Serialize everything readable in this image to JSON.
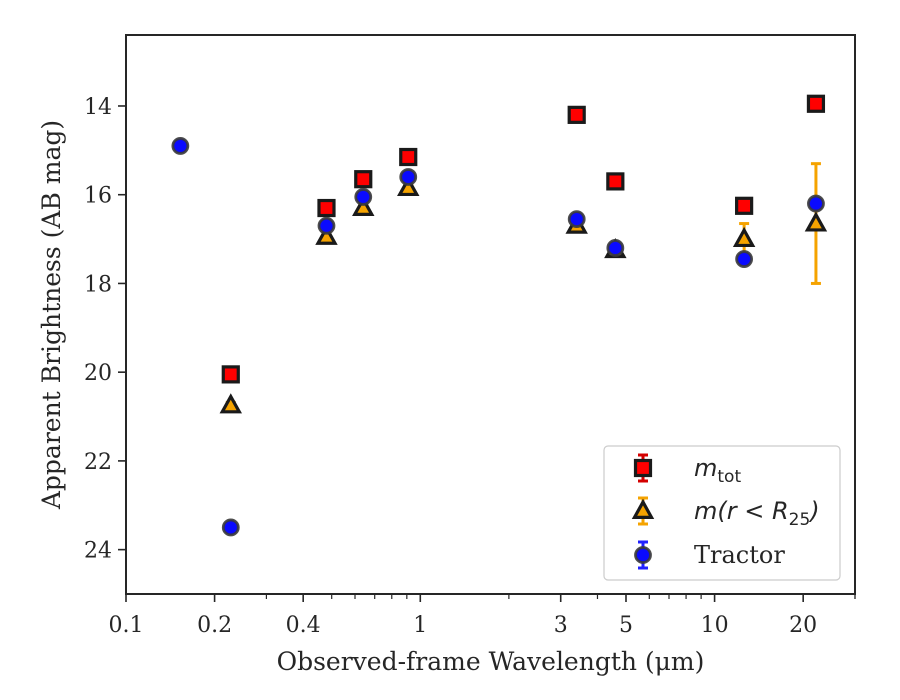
{
  "chart_data": {
    "type": "scatter",
    "xlabel": "Observed-frame Wavelength (μm)",
    "ylabel": "Apparent Brightness (AB mag)",
    "xscale": "log",
    "yaxis_inverted": true,
    "xlim": [
      0.1,
      30
    ],
    "ylim": [
      25,
      12.4
    ],
    "xticks": [
      {
        "value": 0.1,
        "label": "0.1"
      },
      {
        "value": 0.2,
        "label": "0.2"
      },
      {
        "value": 0.4,
        "label": "0.4"
      },
      {
        "value": 1,
        "label": "1"
      },
      {
        "value": 3,
        "label": "3"
      },
      {
        "value": 5,
        "label": "5"
      },
      {
        "value": 10,
        "label": "10"
      },
      {
        "value": 20,
        "label": "20"
      }
    ],
    "yticks": [
      {
        "value": 14,
        "label": "14"
      },
      {
        "value": 16,
        "label": "16"
      },
      {
        "value": 18,
        "label": "18"
      },
      {
        "value": 20,
        "label": "20"
      },
      {
        "value": 22,
        "label": "22"
      },
      {
        "value": 24,
        "label": "24"
      }
    ],
    "grid": false,
    "legend_position": "lower-right",
    "legend": [
      {
        "series": "m_tot",
        "main": "m",
        "sub": "tot"
      },
      {
        "series": "m_r25",
        "main": "m(r < R",
        "sub": "25",
        "tail": ")"
      },
      {
        "series": "tractor",
        "text": "Tractor"
      }
    ],
    "series": [
      {
        "key": "m_tot",
        "marker": "square",
        "color": "#ff0000",
        "edge": "#1a1a1a",
        "err_color": "#d40000",
        "points": [
          {
            "x": 0.227,
            "y": 20.05
          },
          {
            "x": 0.48,
            "y": 16.3
          },
          {
            "x": 0.64,
            "y": 15.65
          },
          {
            "x": 0.91,
            "y": 15.15
          },
          {
            "x": 3.4,
            "y": 14.2
          },
          {
            "x": 4.6,
            "y": 15.7
          },
          {
            "x": 12.6,
            "y": 16.25
          },
          {
            "x": 22.1,
            "y": 13.95
          }
        ]
      },
      {
        "key": "m_r25",
        "marker": "triangle",
        "color": "#f5a300",
        "edge": "#1a1a1a",
        "err_color": "#f5a300",
        "points": [
          {
            "x": 0.227,
            "y": 20.75
          },
          {
            "x": 0.48,
            "y": 16.95
          },
          {
            "x": 0.64,
            "y": 16.3
          },
          {
            "x": 0.91,
            "y": 15.85
          },
          {
            "x": 3.4,
            "y": 16.7
          },
          {
            "x": 4.6,
            "y": 17.25
          },
          {
            "x": 12.6,
            "y": 17.0,
            "err": 0.35
          },
          {
            "x": 22.1,
            "y": 16.65,
            "err_low": 1.35,
            "err_high": 1.35
          }
        ]
      },
      {
        "key": "tractor",
        "marker": "circle",
        "color": "#0a0aff",
        "edge": "#3a3a3a",
        "err_color": "#2020ff",
        "points": [
          {
            "x": 0.153,
            "y": 14.9
          },
          {
            "x": 0.227,
            "y": 23.5
          },
          {
            "x": 0.48,
            "y": 16.7
          },
          {
            "x": 0.64,
            "y": 16.05
          },
          {
            "x": 0.91,
            "y": 15.6
          },
          {
            "x": 3.4,
            "y": 16.55
          },
          {
            "x": 4.6,
            "y": 17.2
          },
          {
            "x": 12.6,
            "y": 17.45
          },
          {
            "x": 22.1,
            "y": 16.2
          }
        ]
      }
    ]
  }
}
